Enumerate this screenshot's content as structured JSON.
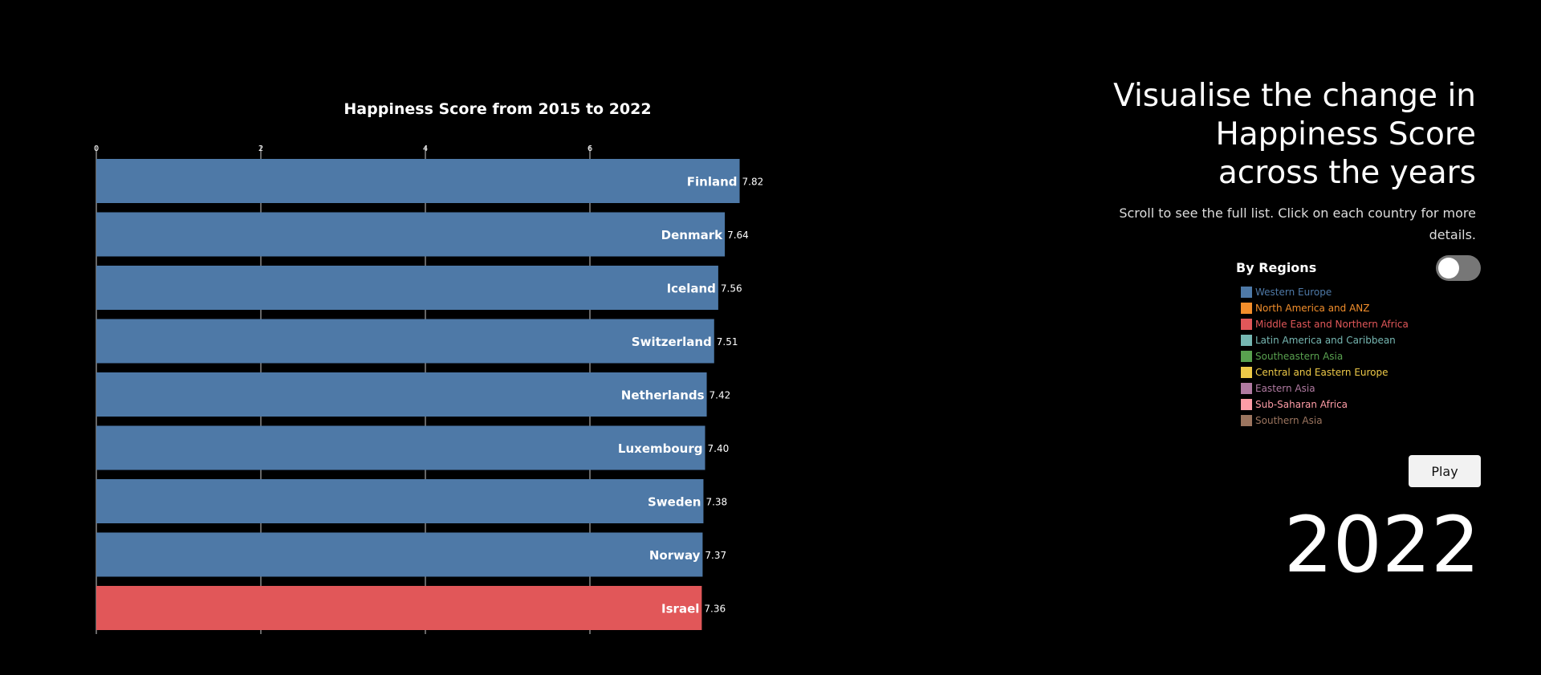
{
  "chart_data": {
    "type": "bar",
    "orientation": "horizontal",
    "title": "Happiness Score from 2015 to 2022",
    "xlabel": "",
    "ylabel": "",
    "xlim": [
      0,
      8
    ],
    "x_ticks": [
      0,
      2,
      4,
      6
    ],
    "grid": true,
    "categories": [
      "Finland",
      "Denmark",
      "Iceland",
      "Switzerland",
      "Netherlands",
      "Luxembourg",
      "Sweden",
      "Norway",
      "Israel"
    ],
    "value_labels": [
      "7.82",
      "7.64",
      "7.56",
      "7.51",
      "7.42",
      "7.40",
      "7.38",
      "7.37",
      "7.36"
    ],
    "values": [
      7.82,
      7.64,
      7.56,
      7.51,
      7.42,
      7.4,
      7.38,
      7.37,
      7.36
    ],
    "regions": [
      "Western Europe",
      "Western Europe",
      "Western Europe",
      "Western Europe",
      "Western Europe",
      "Western Europe",
      "Western Europe",
      "Western Europe",
      "Middle East and Northern Africa"
    ]
  },
  "panel": {
    "headline": "Visualise the change in Happiness Score across the years",
    "instructions": "Scroll to see the full list. Click on each country for more details.",
    "regions_title": "By Regions",
    "toggle_on": false,
    "play_label": "Play",
    "year": "2022"
  },
  "legend": [
    {
      "name": "Western Europe",
      "color": "#4e79a7"
    },
    {
      "name": "North America and ANZ",
      "color": "#f28e2b"
    },
    {
      "name": "Middle East and Northern Africa",
      "color": "#e15759"
    },
    {
      "name": "Latin America and Caribbean",
      "color": "#76b7b2"
    },
    {
      "name": "Southeastern Asia",
      "color": "#59a14f"
    },
    {
      "name": "Central and Eastern Europe",
      "color": "#edc948"
    },
    {
      "name": "Eastern Asia",
      "color": "#b07aa1"
    },
    {
      "name": "Sub-Saharan Africa",
      "color": "#ff9da7"
    },
    {
      "name": "Southern Asia",
      "color": "#9c755f"
    }
  ],
  "colors": {
    "background": "#000000",
    "axis": "#cccccc",
    "text": "#ffffff"
  }
}
